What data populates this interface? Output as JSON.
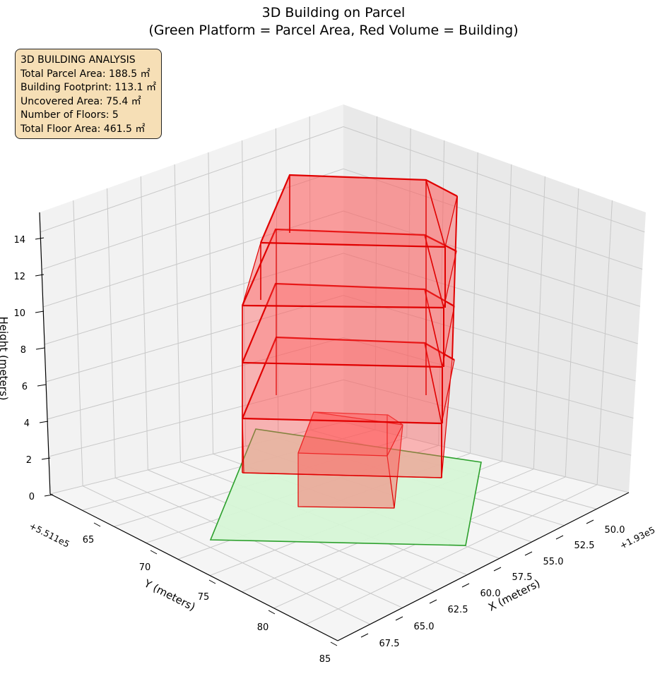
{
  "chart_data": {
    "type": "3d-box",
    "title": "3D Building on Parcel",
    "subtitle": "(Green Platform = Parcel Area, Red Volume = Building)",
    "xlabel": "X (meters)",
    "ylabel": "Y (meters)",
    "zlabel": "Height (meters)",
    "x_offset_label": "+1.93e5",
    "y_offset_label": "+5.511e5",
    "x_ticks": [
      "50.0",
      "52.5",
      "55.0",
      "57.5",
      "60.0",
      "62.5",
      "65.0",
      "67.5"
    ],
    "y_ticks": [
      "65",
      "70",
      "75",
      "80",
      "85"
    ],
    "z_ticks": [
      "0",
      "2",
      "4",
      "6",
      "8",
      "10",
      "12",
      "14"
    ],
    "zlim": [
      0,
      15
    ],
    "grid": true,
    "parcel_color": "#2ca02c",
    "parcel_fill": "#d6f5d6",
    "building_color": "#e00000",
    "building_fill": "#ff5a5a",
    "info": {
      "heading": "3D BUILDING ANALYSIS",
      "lines": [
        "Total Parcel Area: 188.5 ㎡",
        "Building Footprint: 113.1 ㎡",
        "Uncovered Area: 75.4 ㎡",
        "Number of Floors: 5",
        "Total Floor Area: 461.5 ㎡"
      ]
    }
  }
}
